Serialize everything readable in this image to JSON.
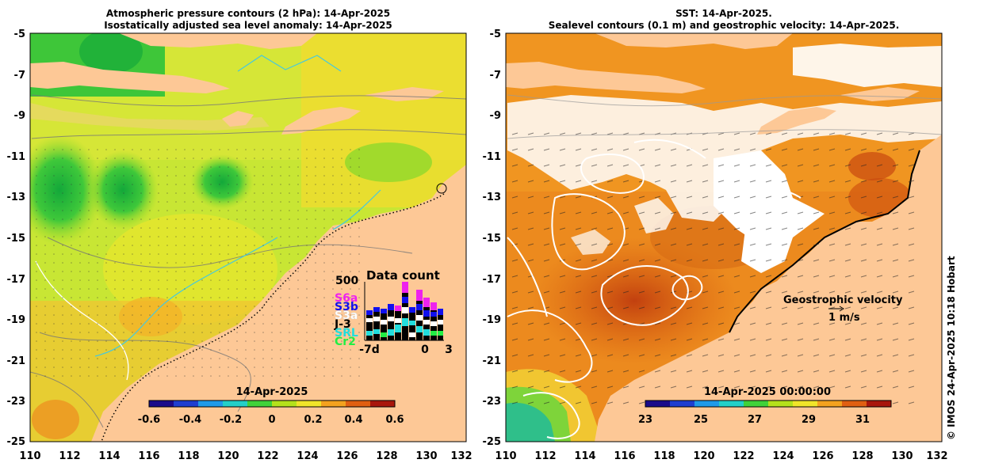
{
  "left_panel": {
    "title_line1": "Atmospheric pressure contours (2 hPa): 14-Apr-2025",
    "title_line2": "Isostatically adjusted sea level anomaly: 14-Apr-2025",
    "x_ticks": [
      "110",
      "112",
      "114",
      "116",
      "118",
      "120",
      "122",
      "124",
      "126",
      "128",
      "130",
      "132"
    ],
    "y_ticks": [
      "-5",
      "-7",
      "-9",
      "-11",
      "-13",
      "-15",
      "-17",
      "-19",
      "-21",
      "-23",
      "-25"
    ],
    "colorbar": {
      "label": "14-Apr-2025",
      "ticks": [
        "-0.6",
        "-0.4",
        "-0.2",
        "0",
        "0.2",
        "0.4",
        "0.6"
      ],
      "colors": [
        "#1a0b8a",
        "#1e3fd0",
        "#1f9ae8",
        "#23d0c8",
        "#3fd23a",
        "#b4e21c",
        "#f0e52a",
        "#f3a21f",
        "#e05f12",
        "#a8160c"
      ]
    },
    "data_count": {
      "title": "Data count",
      "ymax": "500",
      "missions": [
        {
          "name": "S6a",
          "color": "#ee22ee"
        },
        {
          "name": "S3b",
          "color": "#1010ee"
        },
        {
          "name": "S3a",
          "color": "#ffffff"
        },
        {
          "name": "J-3",
          "color": "#000000"
        },
        {
          "name": "SRL",
          "color": "#22dddd"
        },
        {
          "name": "Cr2",
          "color": "#22ee44"
        }
      ],
      "x_labels": [
        "-7d",
        "0",
        "3"
      ]
    }
  },
  "right_panel": {
    "title_line1": "SST: 14-Apr-2025.",
    "title_line2": "Sealevel contours (0.1 m) and geostrophic velocity: 14-Apr-2025.",
    "x_ticks": [
      "110",
      "112",
      "114",
      "116",
      "118",
      "120",
      "122",
      "124",
      "126",
      "128",
      "130",
      "132"
    ],
    "y_ticks": [
      "-5",
      "-7",
      "-9",
      "-11",
      "-13",
      "-15",
      "-17",
      "-19",
      "-21",
      "-23",
      "-25"
    ],
    "colorbar": {
      "label": "14-Apr-2025 00:00:00",
      "ticks": [
        "23",
        "25",
        "27",
        "29",
        "31"
      ],
      "colors": [
        "#1a0b8a",
        "#1e3fd0",
        "#1f9ae8",
        "#23d0c8",
        "#3fd23a",
        "#b4e21c",
        "#f0e52a",
        "#f3a21f",
        "#e05f12",
        "#a8160c"
      ]
    },
    "velocity_legend": {
      "title": "Geostrophic velocity",
      "scale": "1 m/s"
    }
  },
  "credit": "© IMOS 24-Apr-2025 10:18 Hobart"
}
